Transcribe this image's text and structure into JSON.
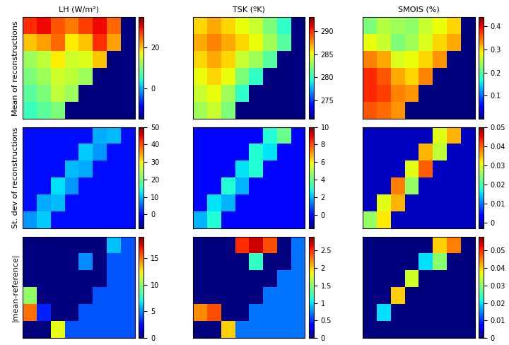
{
  "chart_data": [
    {
      "type": "heatmap",
      "title": "LH (W/m²)",
      "ylabel": "Mean of reconstructions",
      "tick_labels": false,
      "color_range": [
        -15,
        35
      ],
      "color_ticks": [
        0,
        20
      ],
      "cells": [
        [
          28,
          30,
          26,
          24,
          27,
          30,
          25,
          -15
        ],
        [
          20,
          22,
          25,
          18,
          20,
          28,
          22,
          -15
        ],
        [
          12,
          14,
          18,
          15,
          16,
          20,
          -15,
          -15
        ],
        [
          10,
          12,
          15,
          14,
          12,
          -15,
          -15,
          -15
        ],
        [
          8,
          10,
          14,
          12,
          -15,
          -15,
          -15,
          -15
        ],
        [
          6,
          8,
          10,
          -15,
          -15,
          -15,
          -15,
          -15
        ]
      ]
    },
    {
      "type": "heatmap",
      "title": "TSK (ºK)",
      "tick_labels": false,
      "color_range": [
        271,
        293
      ],
      "color_ticks": [
        275,
        280,
        285,
        290
      ],
      "cells": [
        [
          286,
          287,
          286,
          285,
          284,
          282,
          280,
          271
        ],
        [
          287,
          288,
          287,
          286,
          285,
          283,
          281,
          271
        ],
        [
          286,
          287,
          286,
          284,
          283,
          281,
          271,
          271
        ],
        [
          285,
          286,
          285,
          282,
          280,
          271,
          271,
          271
        ],
        [
          284,
          285,
          283,
          280,
          271,
          271,
          271,
          271
        ],
        [
          283,
          284,
          282,
          271,
          271,
          271,
          271,
          271
        ]
      ]
    },
    {
      "type": "heatmap",
      "title": "SMOIS (%)",
      "tick_labels": false,
      "color_range": [
        0,
        0.44
      ],
      "color_ticks": [
        0.1,
        0.2,
        0.3,
        0.4
      ],
      "cells": [
        [
          0.22,
          0.25,
          0.24,
          0.23,
          0.26,
          0.28,
          0.3,
          0
        ],
        [
          0.28,
          0.26,
          0.22,
          0.24,
          0.27,
          0.3,
          0.32,
          0
        ],
        [
          0.34,
          0.32,
          0.27,
          0.28,
          0.3,
          0.33,
          0,
          0
        ],
        [
          0.38,
          0.36,
          0.32,
          0.3,
          0.34,
          0,
          0,
          0
        ],
        [
          0.38,
          0.37,
          0.34,
          0.33,
          0,
          0,
          0,
          0
        ],
        [
          0.36,
          0.35,
          0.33,
          0,
          0,
          0,
          0,
          0
        ]
      ]
    },
    {
      "type": "heatmap",
      "ylabel": "St. dev of reconstructions",
      "tick_labels": false,
      "color_range": [
        -8,
        50
      ],
      "color_ticks": [
        0,
        10,
        20,
        30,
        40,
        50
      ],
      "cells": [
        [
          0,
          0,
          0,
          0,
          0,
          9,
          10,
          0
        ],
        [
          0,
          0,
          0,
          0,
          11,
          8,
          0,
          0
        ],
        [
          0,
          0,
          0,
          10,
          9,
          0,
          0,
          0
        ],
        [
          0,
          0,
          12,
          8,
          0,
          0,
          0,
          0
        ],
        [
          0,
          9,
          10,
          0,
          0,
          0,
          0,
          0
        ],
        [
          8,
          11,
          0,
          0,
          0,
          0,
          0,
          0
        ]
      ]
    },
    {
      "type": "heatmap",
      "tick_labels": false,
      "color_range": [
        -1.5,
        10
      ],
      "color_ticks": [
        0,
        2,
        4,
        6,
        8,
        10
      ],
      "cells": [
        [
          0,
          0,
          0,
          0,
          0,
          3,
          4,
          0
        ],
        [
          0,
          0,
          0,
          0,
          3,
          2.5,
          0,
          0
        ],
        [
          0,
          0,
          0,
          2.5,
          3,
          0,
          0,
          0
        ],
        [
          0,
          0,
          3,
          2,
          0,
          0,
          0,
          0
        ],
        [
          0,
          2.5,
          2,
          0,
          0,
          0,
          0,
          0
        ],
        [
          2,
          3,
          0,
          0,
          0,
          0,
          0,
          0
        ]
      ]
    },
    {
      "type": "heatmap",
      "tick_labels": false,
      "color_range": [
        -0.003,
        0.05
      ],
      "color_ticks": [
        0,
        0.01,
        0.02,
        0.03,
        0.04,
        0.05
      ],
      "cells": [
        [
          0,
          0,
          0,
          0,
          0,
          0.03,
          0.035,
          0
        ],
        [
          0,
          0,
          0,
          0,
          0.035,
          0.028,
          0,
          0
        ],
        [
          0,
          0,
          0,
          0.03,
          0.04,
          0,
          0,
          0
        ],
        [
          0,
          0,
          0.038,
          0.025,
          0,
          0,
          0,
          0
        ],
        [
          0,
          0.03,
          0.035,
          0,
          0,
          0,
          0,
          0
        ],
        [
          0.025,
          0.032,
          0,
          0,
          0,
          0,
          0,
          0
        ]
      ]
    },
    {
      "type": "heatmap",
      "ylabel": "|mean-reference|",
      "tick_labels": false,
      "color_range": [
        0,
        19
      ],
      "color_ticks": [
        0,
        5,
        10,
        15
      ],
      "cells": [
        [
          0,
          0,
          0,
          0,
          0,
          0,
          6,
          4
        ],
        [
          0,
          0,
          0,
          0,
          5,
          0,
          4,
          4
        ],
        [
          0,
          0,
          0,
          0,
          0,
          0,
          4,
          4
        ],
        [
          10,
          0,
          0,
          0,
          0,
          4,
          4,
          4
        ],
        [
          15,
          3,
          0,
          0,
          4,
          4,
          4,
          4
        ],
        [
          0,
          0,
          12,
          4,
          4,
          4,
          4,
          4
        ]
      ]
    },
    {
      "type": "heatmap",
      "tick_labels": false,
      "color_range": [
        0,
        2.9
      ],
      "color_ticks": [
        0,
        0.5,
        1,
        1.5,
        2,
        2.5
      ],
      "cells": [
        [
          0,
          0,
          0,
          2.5,
          2.7,
          2.4,
          0,
          0.7
        ],
        [
          0,
          0,
          0,
          0,
          1.2,
          0,
          0,
          0.7
        ],
        [
          0,
          0,
          0,
          0,
          0,
          0,
          0.7,
          0.7
        ],
        [
          0,
          0,
          0,
          0,
          0,
          0.7,
          0.7,
          0.7
        ],
        [
          2.2,
          2.4,
          0,
          0,
          0.7,
          0.7,
          0.7,
          0.7
        ],
        [
          0,
          0,
          2,
          0.7,
          0.7,
          0.7,
          0.7,
          0.7
        ]
      ]
    },
    {
      "type": "heatmap",
      "tick_labels": false,
      "color_range": [
        0,
        0.058
      ],
      "color_ticks": [
        0,
        0.01,
        0.02,
        0.03,
        0.04,
        0.05
      ],
      "cells": [
        [
          0,
          0,
          0,
          0,
          0,
          0.04,
          0.045,
          0
        ],
        [
          0,
          0,
          0,
          0,
          0.02,
          0.03,
          0,
          0
        ],
        [
          0,
          0,
          0,
          0.035,
          0,
          0,
          0,
          0
        ],
        [
          0,
          0,
          0.04,
          0,
          0,
          0,
          0,
          0
        ],
        [
          0,
          0.02,
          0,
          0,
          0,
          0,
          0,
          0
        ],
        [
          0,
          0,
          0,
          0,
          0,
          0,
          0,
          0
        ]
      ]
    }
  ]
}
